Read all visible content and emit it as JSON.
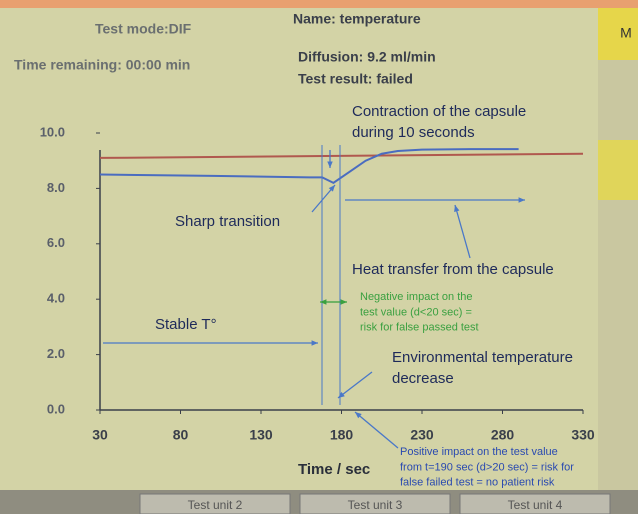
{
  "header": {
    "test_mode": "Test mode:DIF",
    "time_remaining": "Time remaining: 00:00 min",
    "name": "Name: temperature",
    "diffusion": "Diffusion: 9.2 ml/min",
    "test_result": "Test result: failed"
  },
  "side_button": "M",
  "tabs": [
    "Test unit 2",
    "Test unit 3",
    "Test unit 4"
  ],
  "chart_data": {
    "type": "line",
    "x_label": "Time / sec",
    "xlim": [
      30,
      330
    ],
    "xticks": [
      30,
      80,
      130,
      180,
      230,
      280,
      330
    ],
    "ylim": [
      0,
      10
    ],
    "yticks": [
      {
        "value": 0,
        "label": "0.0"
      },
      {
        "value": 2,
        "label": "2.0"
      },
      {
        "value": 4,
        "label": "4.0"
      },
      {
        "value": 6,
        "label": "6.0"
      },
      {
        "value": 8,
        "label": "8.0"
      },
      {
        "value": 10,
        "label": "10.0"
      }
    ],
    "series": [
      {
        "color": "#b0584e",
        "x": [
          30,
          330
        ],
        "values": [
          9.1,
          9.25
        ]
      },
      {
        "color": "#4a6cc0",
        "x": [
          30,
          100,
          160,
          168,
          175,
          185,
          195,
          205,
          215,
          230,
          260,
          290
        ],
        "values": [
          8.5,
          8.45,
          8.4,
          8.4,
          8.2,
          8.6,
          9.0,
          9.25,
          9.35,
          9.4,
          9.42,
          9.42
        ]
      }
    ],
    "annotations": [
      {
        "lines": [
          "Contraction of the capsule",
          "during 10 seconds"
        ]
      },
      {
        "lines": [
          "Sharp transition"
        ]
      },
      {
        "lines": [
          "Heat transfer from the capsule"
        ]
      },
      {
        "lines": [
          "Negative impact on the",
          "test value (d<20 sec) =",
          "risk for false passed test"
        ]
      },
      {
        "lines": [
          "Stable T°"
        ]
      },
      {
        "lines": [
          "Environmental temperature",
          "decrease"
        ]
      },
      {
        "lines": [
          "Positive impact on the test value",
          "from t=190 sec (d>20 sec) = risk for",
          "false failed test = no patient risk"
        ]
      }
    ]
  }
}
